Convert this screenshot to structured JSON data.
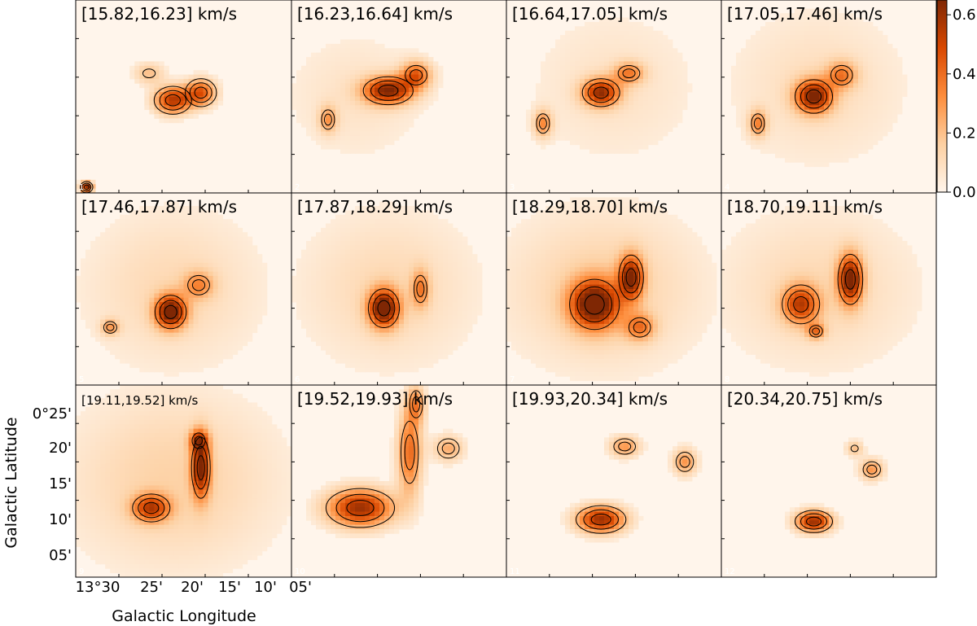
{
  "chart_data": {
    "type": "heatmap",
    "description_units": "channel-map intensity",
    "xlabel": "Galactic Longitude",
    "ylabel": "Galactic Latitude",
    "x_tick_labels": [
      "13°30",
      "25'",
      "20'",
      "15'",
      "10'",
      "05'"
    ],
    "y_tick_labels": [
      "0°25'",
      "20'",
      "15'",
      "10'",
      "05'"
    ],
    "colorbar": {
      "range": [
        0.0,
        0.65
      ],
      "ticks": [
        "0.0",
        "0.2",
        "0.4",
        "0.6"
      ],
      "cmap": [
        "#fff5eb",
        "#fdd0a2",
        "#fd8d3c",
        "#d94801",
        "#7f2704"
      ]
    },
    "panels": [
      {
        "range": "[15.82,16.23] km/s",
        "index": "1"
      },
      {
        "range": "[16.23,16.64] km/s",
        "index": "2"
      },
      {
        "range": "[16.64,17.05] km/s",
        "index": "3"
      },
      {
        "range": "[17.05,17.46] km/s",
        "index": "4"
      },
      {
        "range": "[17.46,17.87] km/s",
        "index": "5"
      },
      {
        "range": "[17.87,18.29] km/s",
        "index": "6"
      },
      {
        "range": "[18.29,18.70] km/s",
        "index": "7"
      },
      {
        "range": "[18.70,19.11] km/s",
        "index": "8"
      },
      {
        "range": "[19.11,19.52] km/s",
        "index": "9"
      },
      {
        "range": "[19.52,19.93] km/s",
        "index": "10"
      },
      {
        "range": "[19.93,20.34] km/s",
        "index": "11"
      },
      {
        "range": "[20.34,20.75] km/s",
        "index": "12"
      }
    ],
    "peaks": [
      [
        {
          "x": 0.45,
          "y": 0.52,
          "a": 0.55,
          "sx": 0.06,
          "sy": 0.05
        },
        {
          "x": 0.58,
          "y": 0.48,
          "a": 0.45,
          "sx": 0.05,
          "sy": 0.05
        },
        {
          "x": 0.34,
          "y": 0.38,
          "a": 0.2,
          "sx": 0.05,
          "sy": 0.04
        },
        {
          "x": 0.05,
          "y": 0.97,
          "a": 0.65,
          "sx": 0.02,
          "sy": 0.02
        }
      ],
      [
        {
          "x": 0.45,
          "y": 0.47,
          "a": 0.6,
          "sx": 0.08,
          "sy": 0.05
        },
        {
          "x": 0.58,
          "y": 0.39,
          "a": 0.4,
          "sx": 0.05,
          "sy": 0.05
        },
        {
          "x": 0.17,
          "y": 0.62,
          "a": 0.25,
          "sx": 0.03,
          "sy": 0.05
        },
        {
          "x": 0.3,
          "y": 0.5,
          "a": 0.08,
          "sx": 0.25,
          "sy": 0.25
        }
      ],
      [
        {
          "x": 0.44,
          "y": 0.48,
          "a": 0.55,
          "sx": 0.06,
          "sy": 0.05
        },
        {
          "x": 0.57,
          "y": 0.38,
          "a": 0.3,
          "sx": 0.05,
          "sy": 0.04
        },
        {
          "x": 0.17,
          "y": 0.64,
          "a": 0.3,
          "sx": 0.03,
          "sy": 0.05
        },
        {
          "x": 0.5,
          "y": 0.45,
          "a": 0.08,
          "sx": 0.3,
          "sy": 0.3
        }
      ],
      [
        {
          "x": 0.43,
          "y": 0.5,
          "a": 0.6,
          "sx": 0.06,
          "sy": 0.06
        },
        {
          "x": 0.56,
          "y": 0.39,
          "a": 0.3,
          "sx": 0.05,
          "sy": 0.05
        },
        {
          "x": 0.17,
          "y": 0.64,
          "a": 0.3,
          "sx": 0.03,
          "sy": 0.05
        },
        {
          "x": 0.45,
          "y": 0.45,
          "a": 0.1,
          "sx": 0.3,
          "sy": 0.3
        }
      ],
      [
        {
          "x": 0.44,
          "y": 0.62,
          "a": 0.65,
          "sx": 0.05,
          "sy": 0.06
        },
        {
          "x": 0.57,
          "y": 0.48,
          "a": 0.25,
          "sx": 0.05,
          "sy": 0.05
        },
        {
          "x": 0.16,
          "y": 0.7,
          "a": 0.25,
          "sx": 0.03,
          "sy": 0.03
        },
        {
          "x": 0.45,
          "y": 0.5,
          "a": 0.12,
          "sx": 0.3,
          "sy": 0.3
        }
      ],
      [
        {
          "x": 0.43,
          "y": 0.6,
          "a": 0.65,
          "sx": 0.05,
          "sy": 0.07
        },
        {
          "x": 0.6,
          "y": 0.5,
          "a": 0.28,
          "sx": 0.03,
          "sy": 0.07
        },
        {
          "x": 0.45,
          "y": 0.5,
          "a": 0.12,
          "sx": 0.3,
          "sy": 0.3
        }
      ],
      [
        {
          "x": 0.41,
          "y": 0.58,
          "a": 0.65,
          "sx": 0.08,
          "sy": 0.09
        },
        {
          "x": 0.58,
          "y": 0.44,
          "a": 0.55,
          "sx": 0.04,
          "sy": 0.08
        },
        {
          "x": 0.62,
          "y": 0.7,
          "a": 0.3,
          "sx": 0.05,
          "sy": 0.05
        },
        {
          "x": 0.45,
          "y": 0.5,
          "a": 0.15,
          "sx": 0.33,
          "sy": 0.3
        }
      ],
      [
        {
          "x": 0.6,
          "y": 0.45,
          "a": 0.6,
          "sx": 0.04,
          "sy": 0.09
        },
        {
          "x": 0.37,
          "y": 0.58,
          "a": 0.45,
          "sx": 0.06,
          "sy": 0.07
        },
        {
          "x": 0.44,
          "y": 0.72,
          "a": 0.3,
          "sx": 0.03,
          "sy": 0.03
        },
        {
          "x": 0.45,
          "y": 0.5,
          "a": 0.12,
          "sx": 0.33,
          "sy": 0.3
        }
      ],
      [
        {
          "x": 0.58,
          "y": 0.43,
          "a": 0.55,
          "sx": 0.03,
          "sy": 0.11
        },
        {
          "x": 0.35,
          "y": 0.64,
          "a": 0.45,
          "sx": 0.06,
          "sy": 0.05
        },
        {
          "x": 0.57,
          "y": 0.29,
          "a": 0.35,
          "sx": 0.03,
          "sy": 0.04
        },
        {
          "x": 0.45,
          "y": 0.5,
          "a": 0.15,
          "sx": 0.35,
          "sy": 0.33
        }
      ],
      [
        {
          "x": 0.32,
          "y": 0.64,
          "a": 0.6,
          "sx": 0.11,
          "sy": 0.07
        },
        {
          "x": 0.55,
          "y": 0.35,
          "a": 0.4,
          "sx": 0.04,
          "sy": 0.16
        },
        {
          "x": 0.73,
          "y": 0.33,
          "a": 0.25,
          "sx": 0.05,
          "sy": 0.05
        },
        {
          "x": 0.58,
          "y": 0.1,
          "a": 0.3,
          "sx": 0.03,
          "sy": 0.07
        }
      ],
      [
        {
          "x": 0.44,
          "y": 0.7,
          "a": 0.6,
          "sx": 0.08,
          "sy": 0.05
        },
        {
          "x": 0.55,
          "y": 0.32,
          "a": 0.3,
          "sx": 0.05,
          "sy": 0.04
        },
        {
          "x": 0.83,
          "y": 0.4,
          "a": 0.3,
          "sx": 0.04,
          "sy": 0.05
        }
      ],
      [
        {
          "x": 0.43,
          "y": 0.71,
          "a": 0.6,
          "sx": 0.06,
          "sy": 0.04
        },
        {
          "x": 0.7,
          "y": 0.44,
          "a": 0.3,
          "sx": 0.04,
          "sy": 0.04
        },
        {
          "x": 0.62,
          "y": 0.33,
          "a": 0.2,
          "sx": 0.03,
          "sy": 0.03
        }
      ]
    ]
  }
}
